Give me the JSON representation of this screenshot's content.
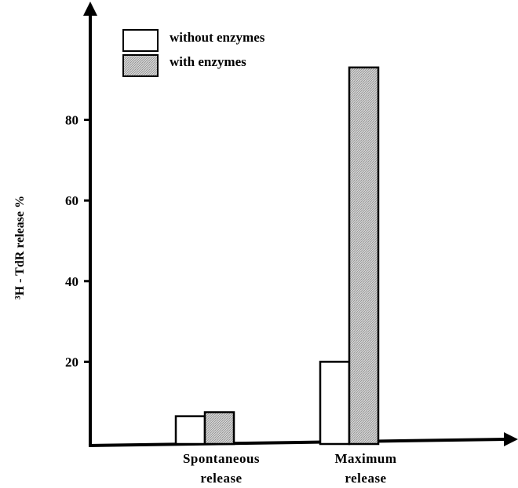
{
  "chart_data": {
    "type": "bar",
    "title": "",
    "xlabel": "",
    "ylabel": "³H - TdR release %",
    "ylim": [
      0,
      107
    ],
    "yticks": [
      20,
      40,
      60,
      80
    ],
    "categories": [
      "Spontaneous\nrelease",
      "Maximum\nrelease"
    ],
    "series": [
      {
        "name": "without enzymes",
        "values": [
          6.5,
          20
        ],
        "fill": "#ffffff"
      },
      {
        "name": "with enzymes",
        "values": [
          7.5,
          93
        ],
        "fill": "#cfcfcf"
      }
    ],
    "legend_position": "top-left",
    "grid": false
  },
  "colors": {
    "axis": "#000000",
    "bar_outline": "#000000",
    "hatch": "#8c8c8c"
  }
}
